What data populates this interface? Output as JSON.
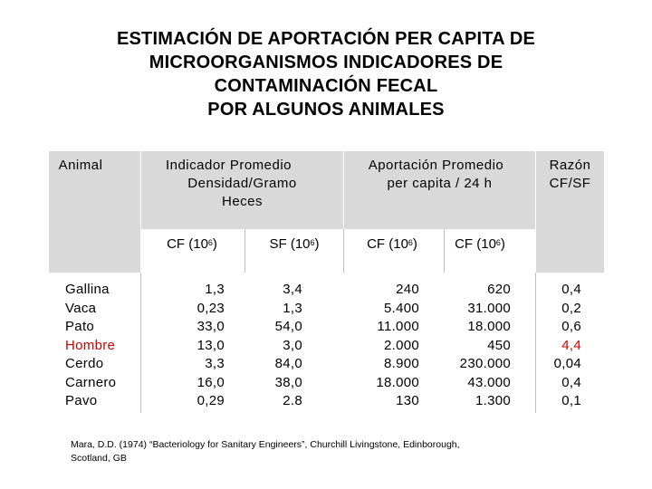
{
  "title": {
    "line1": "ESTIMACIÓN DE APORTACIÓN PER CAPITA DE",
    "line2": "MICROORGANISMOS INDICADORES DE",
    "line3": "CONTAMINACIÓN FECAL",
    "line4": "POR ALGUNOS ANIMALES"
  },
  "headers": {
    "animal": "Animal",
    "indicador_1": "Indicador Promedio",
    "indicador_2": "Densidad/Gramo",
    "indicador_3": "Heces",
    "aportacion_1": "Aportación Promedio",
    "aportacion_2": "per capita / 24 h",
    "razon_1": "Razón",
    "razon_2": "CF/SF"
  },
  "subheaders": [
    {
      "label": "CF (10",
      "exp": "6",
      "close": ")"
    },
    {
      "label": "SF (10",
      "exp": "6",
      "close": ")"
    },
    {
      "label": "CF (10",
      "exp": "6",
      "close": ")"
    },
    {
      "label": "CF (10",
      "exp": "6",
      "close": ")"
    }
  ],
  "colors": {
    "header_bg": "#d9d9d9",
    "highlight": "#cc0000"
  },
  "rows": [
    {
      "animal": "Gallina",
      "cf_density": "1,3",
      "sf_density": "3,4",
      "cf_contrib": "240",
      "cf_contrib2": "620",
      "ratio": "0,4"
    },
    {
      "animal": "Vaca",
      "cf_density": "0,23",
      "sf_density": "1,3",
      "cf_contrib": "5.400",
      "cf_contrib2": "31.000",
      "ratio": "0,2"
    },
    {
      "animal": "Pato",
      "cf_density": "33,0",
      "sf_density": "54,0",
      "cf_contrib": "11.000",
      "cf_contrib2": "18.000",
      "ratio": "0,6"
    },
    {
      "animal": "Hombre",
      "cf_density": "13,0",
      "sf_density": "3,0",
      "cf_contrib": "2.000",
      "cf_contrib2": "450",
      "ratio": "4,4",
      "highlight": true
    },
    {
      "animal": "Cerdo",
      "cf_density": "3,3",
      "sf_density": "84,0",
      "cf_contrib": "8.900",
      "cf_contrib2": "230.000",
      "ratio": "0,04"
    },
    {
      "animal": "Carnero",
      "cf_density": "16,0",
      "sf_density": "38,0",
      "cf_contrib": "18.000",
      "cf_contrib2": "43.000",
      "ratio": "0,4"
    },
    {
      "animal": "Pavo",
      "cf_density": "0,29",
      "sf_density": "2.8",
      "cf_contrib": "130",
      "cf_contrib2": "1.300",
      "ratio": "0,1"
    }
  ],
  "footnote": {
    "line1": "Mara, D.D. (1974) “Bacteriology for Sanitary Engineers”, Churchill Livingstone, Edinborough,",
    "line2": "Scotland, GB"
  }
}
